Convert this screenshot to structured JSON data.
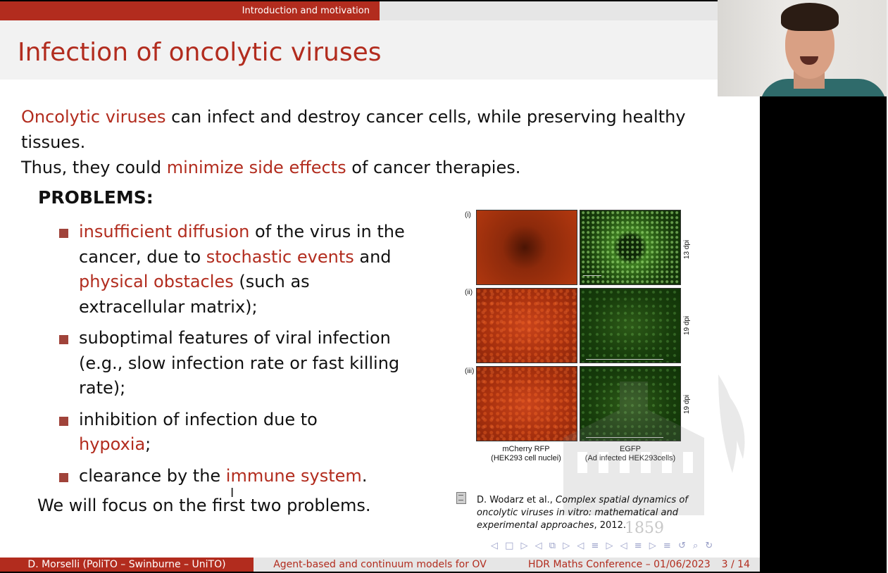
{
  "header": {
    "section": "Introduction and motivation"
  },
  "slide": {
    "title": "Infection of oncolytic viruses",
    "intro": {
      "p1_highlight": "Oncolytic viruses",
      "p1_rest": " can infect and destroy cancer cells, while preserving healthy tissues.",
      "p2_start": "Thus, they could ",
      "p2_highlight": "minimize side effects",
      "p2_end": " of cancer therapies."
    },
    "problems_heading": "PROBLEMS:",
    "problems": {
      "p1": {
        "h1": "insufficient diffusion",
        "t1": " of the virus in the cancer, due to ",
        "h2": "stochastic events",
        "t2": " and ",
        "h3": "physical obstacles",
        "t3": " (such as extracellular matrix);"
      },
      "p2": {
        "text": "suboptimal features of viral infection (e.g., slow infection rate or fast killing rate);"
      },
      "p3": {
        "text": "inhibition of infection due to ",
        "h1": "hypoxia",
        "end": ";"
      },
      "p4": {
        "text": "clearance by the ",
        "h1": "immune system",
        "end": "."
      }
    },
    "conclusion": "We will focus on the first two problems.",
    "text_cursor": "I",
    "figure": {
      "row_labels": [
        "(i)",
        "(ii)",
        "(iii)"
      ],
      "dpi_labels": [
        "13 dpi",
        "19 dpi",
        "19 dpi"
      ],
      "caption_left_1": "mCherry RFP",
      "caption_left_2": "(HEK293 cell nuclei)",
      "caption_right_1": "EGFP",
      "caption_right_2": "(Ad infected HEK293cells)"
    },
    "reference": {
      "authors": "D. Wodarz et al., ",
      "title": "Complex spatial dynamics of oncolytic viruses in vitro: mathematical and experimental approaches",
      "year": ", 2012."
    },
    "watermark_year": "1859",
    "nav_icons": "◁ □ ▷ ◁ ⧉ ▷ ◁ ≡ ▷ ◁ ≡ ▷ ≡ ↺ ⌕ ↻"
  },
  "footer": {
    "author": "D. Morselli  (PoliTO – Swinburne – UniTO)",
    "talk": "Agent-based and continuum models for OV",
    "conference": "HDR Maths Conference – 01/06/2023",
    "page": "3 / 14"
  },
  "colors": {
    "accent": "#b22c1e",
    "header_bg": "#e6e6e6",
    "title_bg": "#f2f2f2"
  }
}
